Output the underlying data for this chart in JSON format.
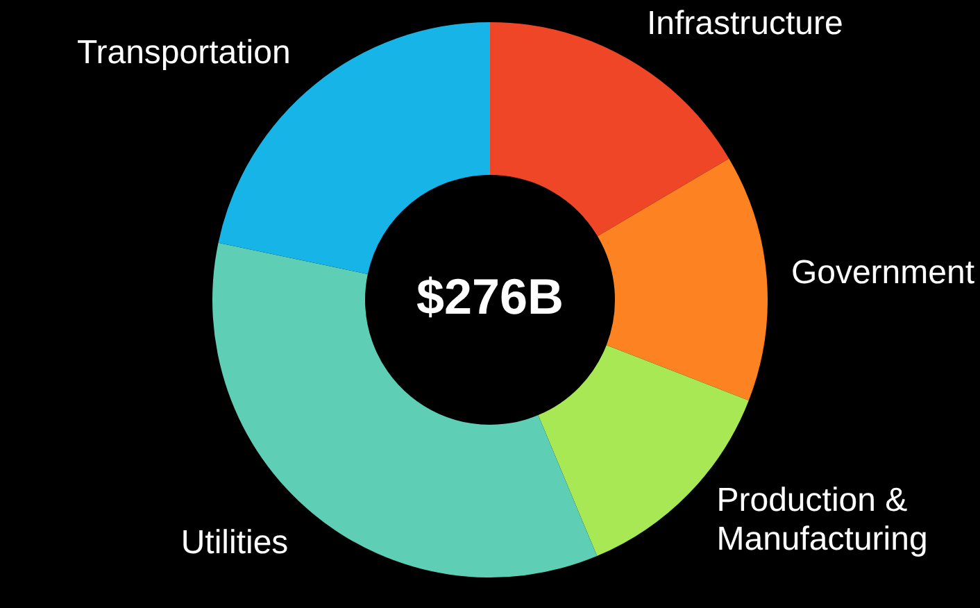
{
  "chart_data": {
    "type": "donut",
    "categories": [
      "Infrastructure",
      "Government",
      "Production & Manufacturing",
      "Utilities",
      "Transportation"
    ],
    "values": [
      16.5,
      14.4,
      12.8,
      34.6,
      21.7
    ],
    "colors": [
      "#f04628",
      "#fd8222",
      "#a8e855",
      "#5ecfb4",
      "#17b4e8"
    ],
    "annotations": [
      "$276B"
    ],
    "legend": false
  }
}
